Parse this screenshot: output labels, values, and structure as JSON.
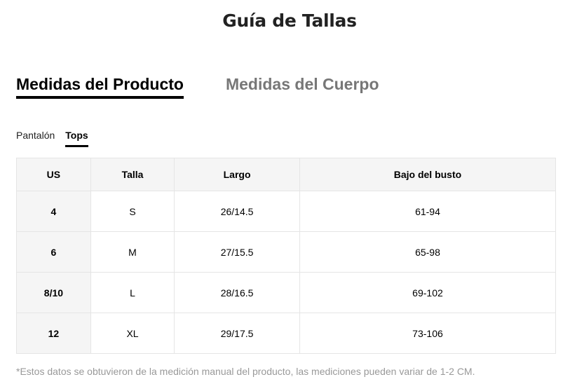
{
  "title": "Guía de Tallas",
  "tabs": [
    {
      "label": "Medidas del Producto",
      "active": true
    },
    {
      "label": "Medidas del Cuerpo",
      "active": false
    }
  ],
  "subtabs": [
    {
      "label": "Pantalón",
      "active": false
    },
    {
      "label": "Tops",
      "active": true
    }
  ],
  "table": {
    "headers": [
      "US",
      "Talla",
      "Largo",
      "Bajo del busto"
    ],
    "rows": [
      [
        "4",
        "S",
        "26/14.5",
        "61-94"
      ],
      [
        "6",
        "M",
        "27/15.5",
        "65-98"
      ],
      [
        "8/10",
        "L",
        "28/16.5",
        "69-102"
      ],
      [
        "12",
        "XL",
        "29/17.5",
        "73-106"
      ]
    ]
  },
  "note": "*Estos datos se obtuvieron de la medición manual del producto, las mediciones pueden variar de 1-2 CM."
}
